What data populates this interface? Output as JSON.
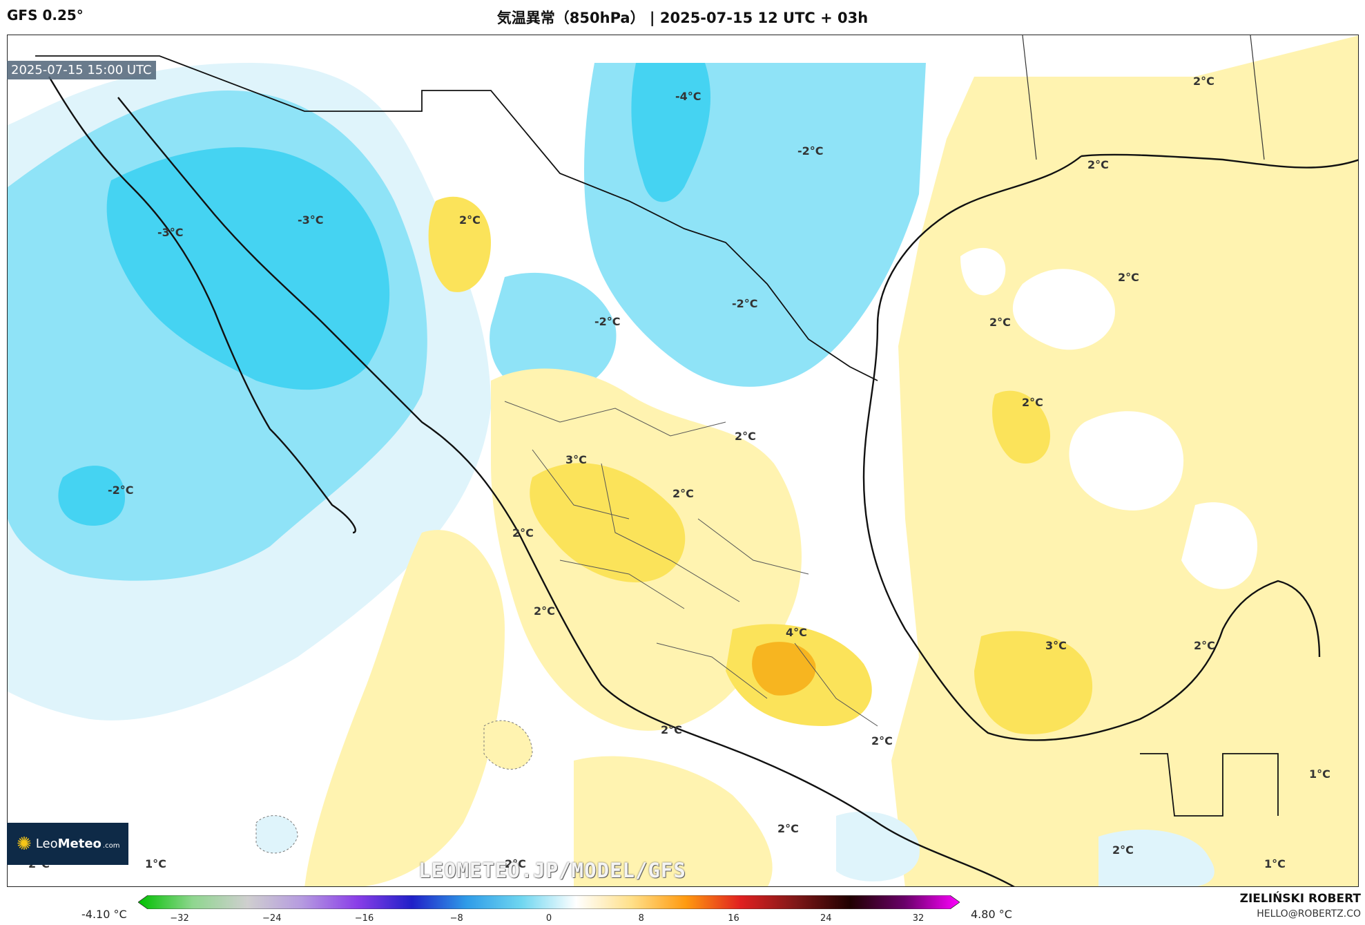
{
  "header": {
    "model": "GFS 0.25°",
    "title": "気温異常（850hPa） | 2025-07-15 12 UTC + 03h"
  },
  "map": {
    "valid_time": "2025-07-15 15:00 UTC",
    "watermark": "LEOMETEO.JP/MODEL/GFS",
    "colors": {
      "cold_strong": "#45d3f2",
      "cold_mid": "#8fe3f7",
      "cold_light": "#dff4fb",
      "neutral": "#ffffff",
      "warm_light": "#fff3b0",
      "warm_mid": "#fbe35a",
      "warm_strong": "#f7b520",
      "land_border": "#111111"
    },
    "labels": [
      {
        "text": "-4°C"
      },
      {
        "text": "-2°C"
      },
      {
        "text": "-3°C"
      },
      {
        "text": "-3°C"
      },
      {
        "text": "-2°C"
      },
      {
        "text": "-2°C"
      },
      {
        "text": "-2°C"
      },
      {
        "text": "2°C"
      },
      {
        "text": "2°C"
      },
      {
        "text": "2°C"
      },
      {
        "text": "2°C"
      },
      {
        "text": "2°C"
      },
      {
        "text": "2°C"
      },
      {
        "text": "3°C"
      },
      {
        "text": "2°C"
      },
      {
        "text": "2°C"
      },
      {
        "text": "2°C"
      },
      {
        "text": "2°C"
      },
      {
        "text": "4°C"
      },
      {
        "text": "3°C"
      },
      {
        "text": "2°C"
      },
      {
        "text": "2°C"
      },
      {
        "text": "2°C"
      },
      {
        "text": "2°C"
      },
      {
        "text": "1°C"
      },
      {
        "text": "2°C"
      },
      {
        "text": "1°C"
      },
      {
        "text": "2°C"
      },
      {
        "text": "2°C"
      },
      {
        "text": "1°C"
      }
    ]
  },
  "logo": {
    "brand_a": "Leo",
    "brand_b": "Meteo",
    "tld": ".com"
  },
  "colorbar": {
    "min_label": "-4.10 °C",
    "max_label": "4.80 °C",
    "ticks": [
      "−32",
      "−24",
      "−16",
      "−8",
      "0",
      "8",
      "16",
      "24",
      "32"
    ],
    "stops": [
      "#00c000",
      "#8fd68f",
      "#cfcfcf",
      "#b59ae0",
      "#8a3ee8",
      "#2020c8",
      "#2f9ce8",
      "#6fd6f0",
      "#ffffff",
      "#ffe08a",
      "#ff9a10",
      "#e02020",
      "#801818",
      "#200000",
      "#6a006a",
      "#ff00ff"
    ]
  },
  "credit": {
    "name": "ZIELIŃSKI ROBERT",
    "email": "HELLO@ROBERTZ.CO"
  }
}
